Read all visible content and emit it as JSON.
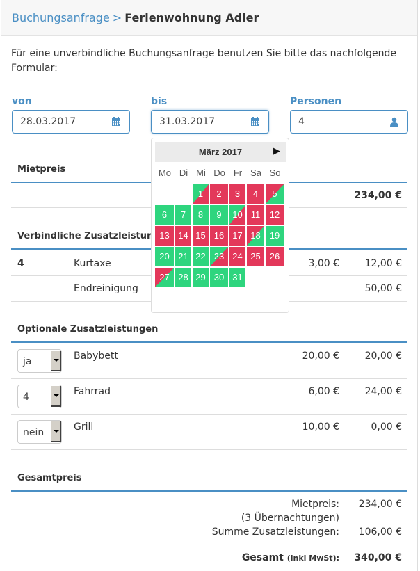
{
  "header": {
    "breadcrumb_link": "Buchungsanfrage",
    "breadcrumb_sep": ">",
    "breadcrumb_current": "Ferienwohnung Adler"
  },
  "intro": "Für eine unverbindliche Buchungsanfrage benutzen Sie bitte das nachfolgende Formular:",
  "form": {
    "from_label": "von",
    "from_value": "28.03.2017",
    "to_label": "bis",
    "to_value": "31.03.2017",
    "persons_label": "Personen",
    "persons_value": "4",
    "from_icon": "calendar-icon",
    "to_icon": "calendar-icon",
    "persons_icon": "user-icon"
  },
  "calendar": {
    "title": "März 2017",
    "next": "▶",
    "weekdays": [
      "Mo",
      "Di",
      "Mi",
      "Do",
      "Fr",
      "Sa",
      "So"
    ],
    "colors": {
      "free": "#2ed57e",
      "booked": "#e3385a"
    },
    "days": [
      {
        "d": "1",
        "s": "arrive"
      },
      {
        "d": "2",
        "s": "booked"
      },
      {
        "d": "3",
        "s": "booked"
      },
      {
        "d": "4",
        "s": "booked"
      },
      {
        "d": "5",
        "s": "depart"
      },
      {
        "d": "6",
        "s": "free"
      },
      {
        "d": "7",
        "s": "free"
      },
      {
        "d": "8",
        "s": "free"
      },
      {
        "d": "9",
        "s": "free"
      },
      {
        "d": "10",
        "s": "arrive"
      },
      {
        "d": "11",
        "s": "booked"
      },
      {
        "d": "12",
        "s": "booked"
      },
      {
        "d": "13",
        "s": "booked"
      },
      {
        "d": "14",
        "s": "booked"
      },
      {
        "d": "15",
        "s": "booked"
      },
      {
        "d": "16",
        "s": "booked"
      },
      {
        "d": "17",
        "s": "booked"
      },
      {
        "d": "18",
        "s": "depart"
      },
      {
        "d": "19",
        "s": "free"
      },
      {
        "d": "20",
        "s": "free"
      },
      {
        "d": "21",
        "s": "free"
      },
      {
        "d": "22",
        "s": "free"
      },
      {
        "d": "23",
        "s": "arrive"
      },
      {
        "d": "24",
        "s": "booked"
      },
      {
        "d": "25",
        "s": "booked"
      },
      {
        "d": "26",
        "s": "booked"
      },
      {
        "d": "27",
        "s": "depart"
      },
      {
        "d": "28",
        "s": "free"
      },
      {
        "d": "29",
        "s": "free"
      },
      {
        "d": "30",
        "s": "free"
      },
      {
        "d": "31",
        "s": "free"
      }
    ]
  },
  "rent": {
    "title": "Mietpreis",
    "amount": "234,00 €"
  },
  "mandatory": {
    "title": "Verbindliche Zusatzleistungen",
    "rows": [
      {
        "qty": "4",
        "name": "Kurtaxe",
        "unit": "3,00 €",
        "total": "12,00 €"
      },
      {
        "qty": "",
        "name": "Endreinigung",
        "unit": "",
        "total": "50,00 €"
      }
    ]
  },
  "optional": {
    "title": "Optionale Zusatzleistungen",
    "rows": [
      {
        "select": "ja",
        "name": "Babybett",
        "unit": "20,00 €",
        "total": "20,00 €"
      },
      {
        "select": "4",
        "name": "Fahrrad",
        "unit": "6,00 €",
        "total": "24,00 €"
      },
      {
        "select": "nein",
        "name": "Grill",
        "unit": "10,00 €",
        "total": "0,00 €"
      }
    ]
  },
  "summary": {
    "title": "Gesamtpreis",
    "rent_label": "Mietpreis:",
    "rent_value": "234,00 €",
    "nights": "(3 Übernachtungen)",
    "extras_label": "Summe Zusatzleistungen:",
    "extras_value": "106,00 €",
    "total_label": "Gesamt",
    "total_note": "(inkl MwSt):",
    "total_value": "340,00 €"
  }
}
